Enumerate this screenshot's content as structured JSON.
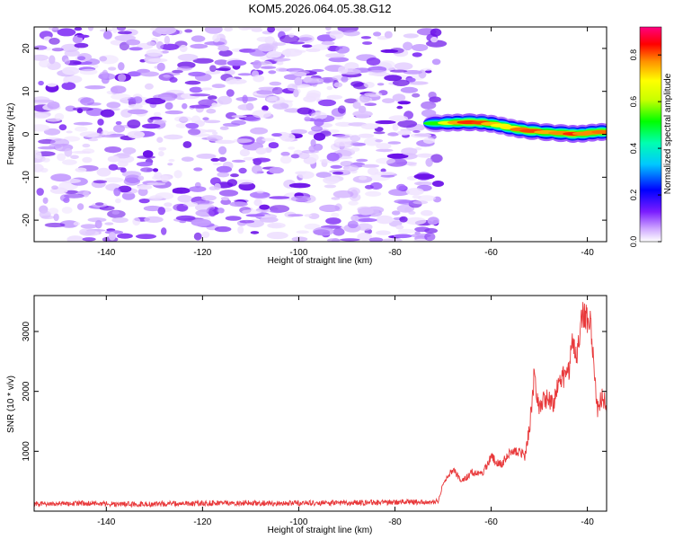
{
  "title": "KOM5.2026.064.05.38.G12",
  "chart_data": [
    {
      "type": "heatmap",
      "xlabel": "Height of straight line (km)",
      "ylabel": "Frequency (Hz)",
      "xlim": [
        -155,
        -36
      ],
      "ylim": [
        -25,
        25
      ],
      "xticks": [
        -140,
        -120,
        -100,
        -80,
        -60,
        -40
      ],
      "yticks": [
        -20,
        -10,
        0,
        10,
        20
      ],
      "xtick_labels": [
        "-140",
        "-120",
        "-100",
        "-80",
        "-60",
        "-40"
      ],
      "ytick_labels": [
        "-20",
        "-10",
        "0",
        "10",
        "20"
      ],
      "noise_region_x": [
        -155,
        -71
      ],
      "signal_track": {
        "x": [
          -73,
          -70,
          -68,
          -66,
          -63,
          -61,
          -59,
          -57,
          -55,
          -53,
          -50,
          -47,
          -44,
          -42,
          -40,
          -38,
          -36
        ],
        "y": [
          2.5,
          2.6,
          2.7,
          2.8,
          2.8,
          2.6,
          2.3,
          1.8,
          1.3,
          1.0,
          0.6,
          0.4,
          0.2,
          0.0,
          0.3,
          0.5,
          0.6
        ],
        "amplitude": [
          0.45,
          0.6,
          0.72,
          0.8,
          0.85,
          0.78,
          0.7,
          0.65,
          0.75,
          0.82,
          0.8,
          0.7,
          0.85,
          0.8,
          0.75,
          0.8,
          0.78
        ]
      },
      "colorbar": {
        "label": "Normalized spectral amplitude",
        "range": [
          0,
          0.92
        ],
        "ticks": [
          0,
          0.2,
          0.4,
          0.6,
          0.8
        ],
        "tick_labels": [
          "0.0",
          "0.2",
          "0.4",
          "0.6",
          "0.8"
        ],
        "colormap": "rainbow"
      }
    },
    {
      "type": "line",
      "xlabel": "Height of straight line (km)",
      "ylabel": "SNR (10 * v/v)",
      "xlim": [
        -155,
        -36
      ],
      "ylim": [
        0,
        3600
      ],
      "xticks": [
        -140,
        -120,
        -100,
        -80,
        -60,
        -40
      ],
      "yticks": [
        1000,
        2000,
        3000
      ],
      "xtick_labels": [
        "-140",
        "-120",
        "-100",
        "-80",
        "-60",
        "-40"
      ],
      "ytick_labels": [
        "1000",
        "2000",
        "3000"
      ],
      "color": "#e8383a",
      "series": [
        {
          "name": "SNR",
          "x": [
            -155,
            -145,
            -135,
            -125,
            -115,
            -105,
            -95,
            -85,
            -75,
            -71,
            -70,
            -68,
            -66,
            -64,
            -62,
            -60,
            -58,
            -56,
            -54,
            -53,
            -52,
            -51,
            -50,
            -49,
            -47,
            -46,
            -44,
            -43,
            -42,
            -41,
            -40,
            -39.5,
            -39,
            -38,
            -37,
            -36
          ],
          "y": [
            120,
            130,
            115,
            125,
            140,
            130,
            135,
            145,
            150,
            160,
            450,
            700,
            500,
            650,
            600,
            900,
            780,
            980,
            1000,
            900,
            1400,
            2300,
            1700,
            1900,
            1800,
            2150,
            2300,
            2800,
            2600,
            3400,
            3200,
            3350,
            2800,
            1700,
            1900,
            1800
          ]
        }
      ]
    }
  ]
}
